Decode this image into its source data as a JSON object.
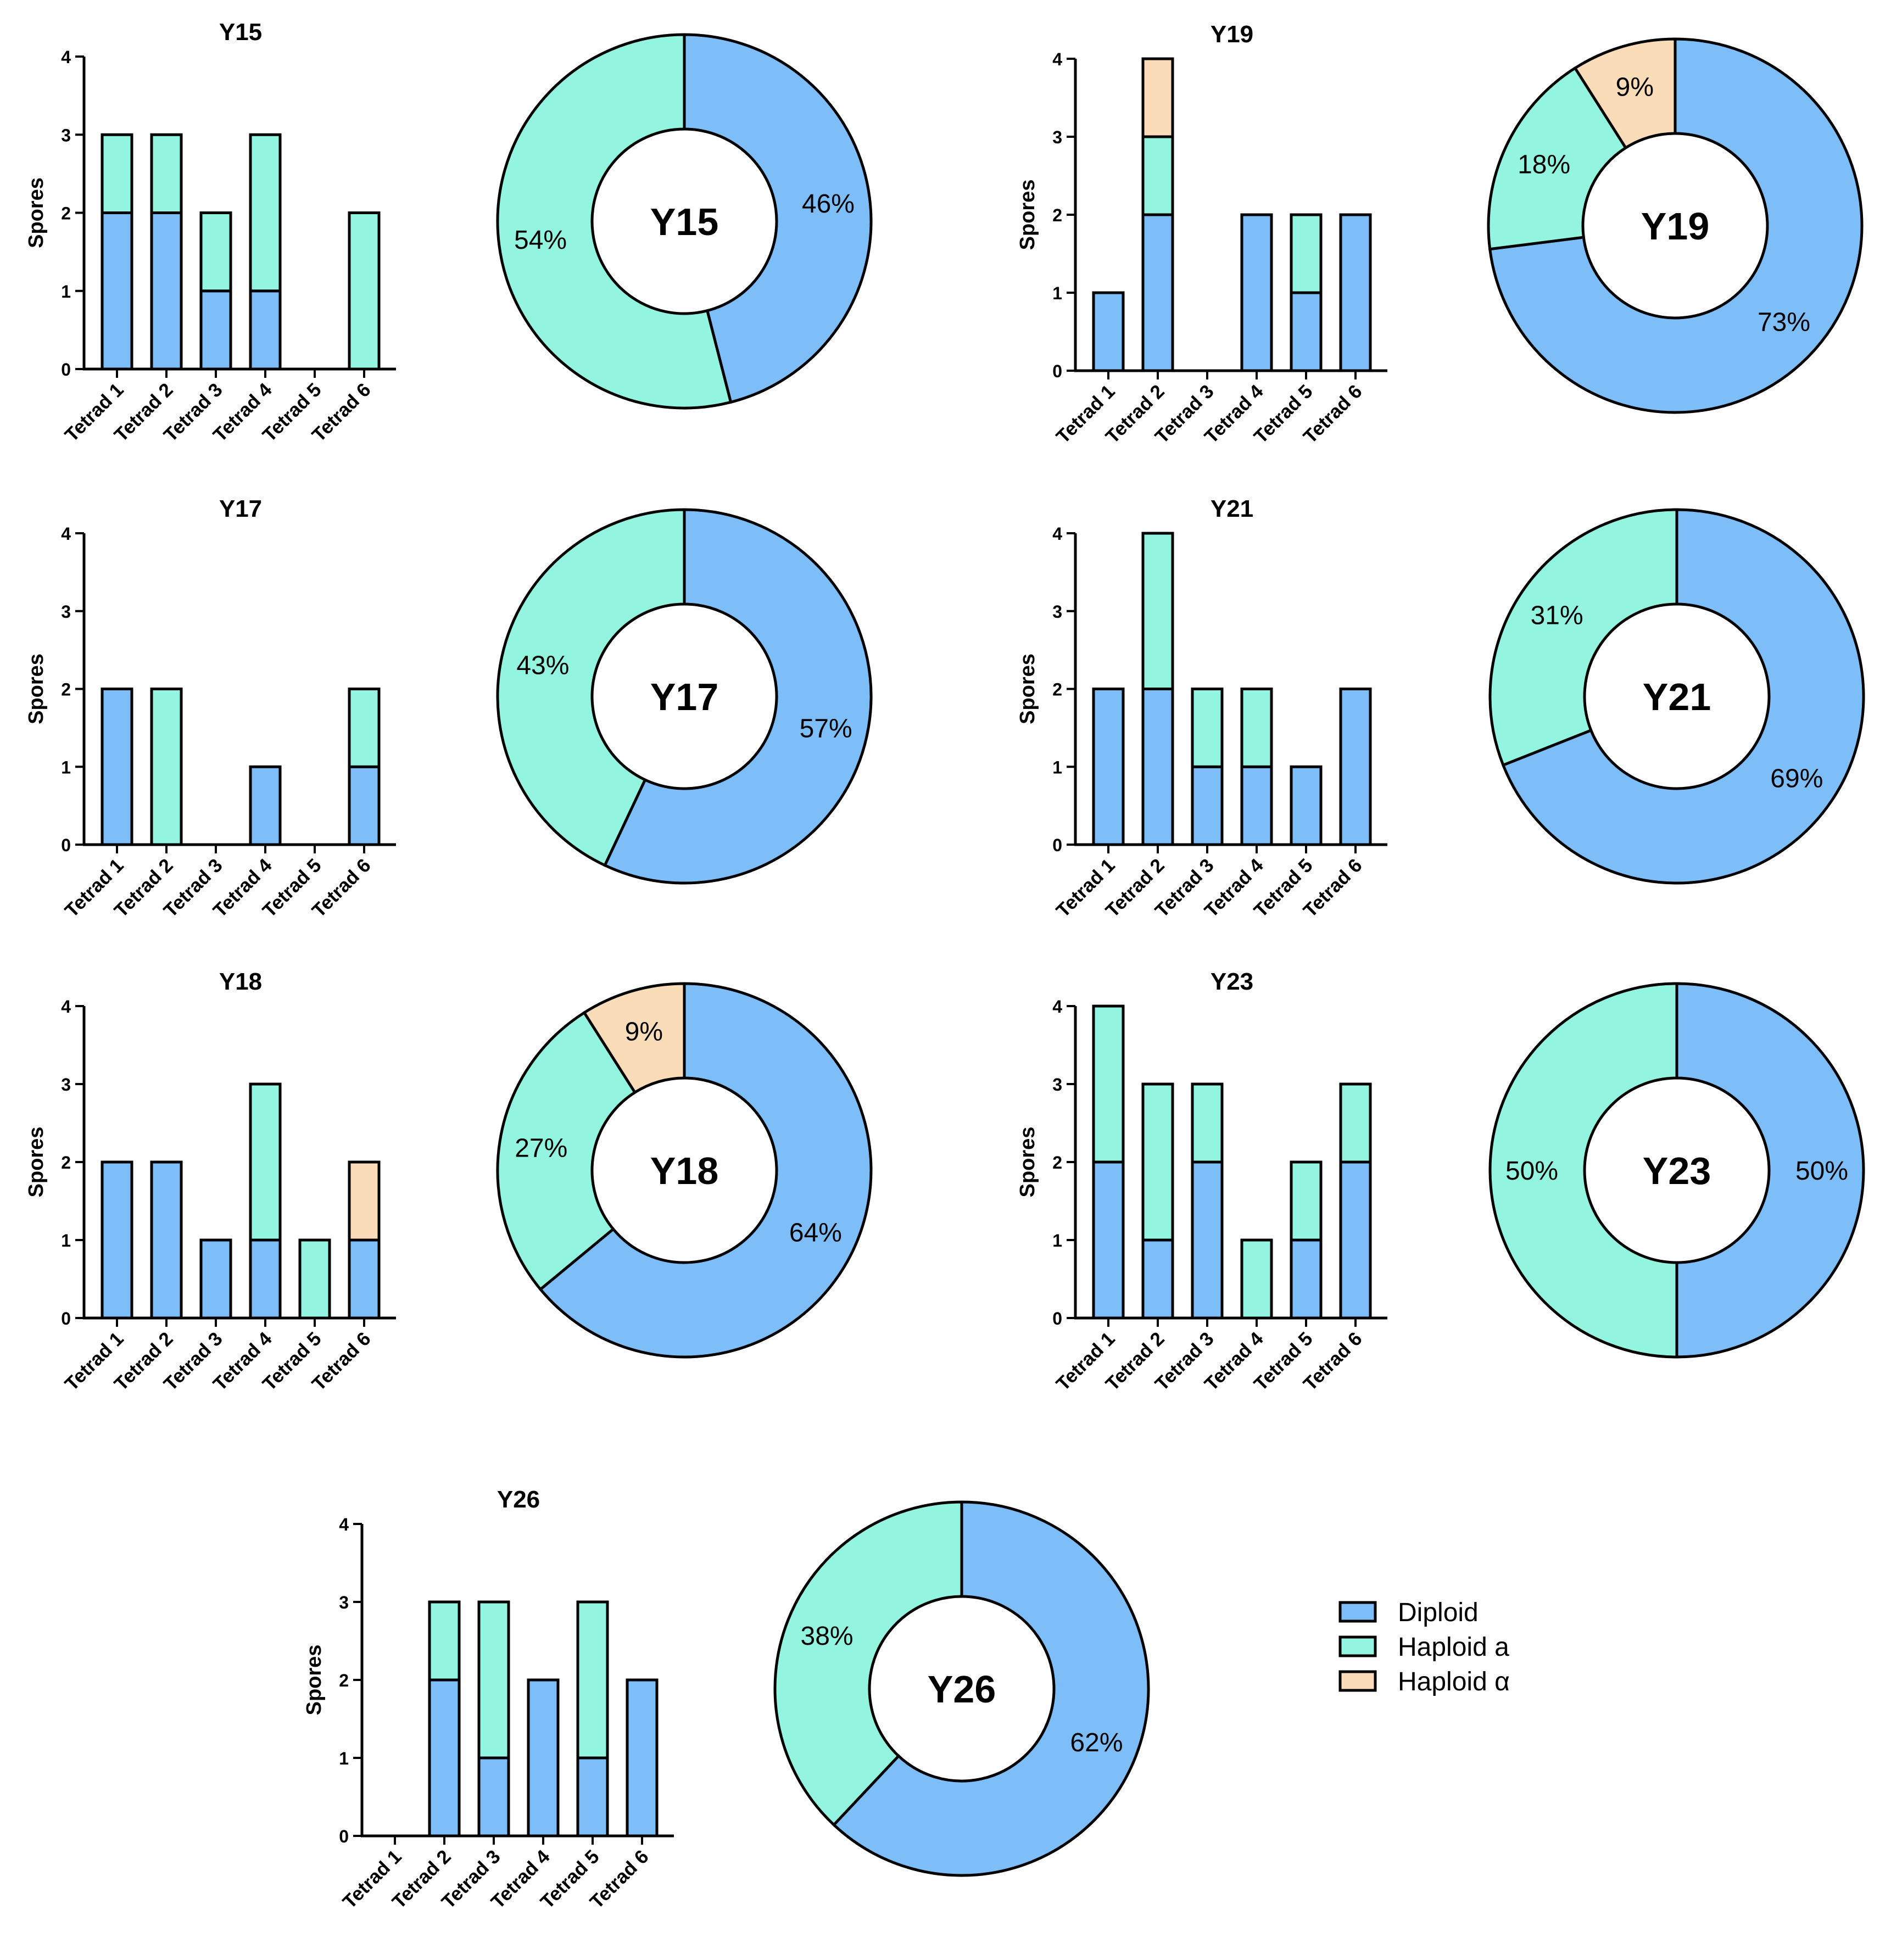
{
  "colors": {
    "diploid": "#7dbdf8",
    "haploid_a": "#93f5df",
    "haploid_alpha": "#fbdcb8",
    "outline": "#000000"
  },
  "legend": [
    {
      "key": "diploid",
      "label": "Diploid"
    },
    {
      "key": "haploid_a",
      "label": "Haploid a"
    },
    {
      "key": "haploid_alpha",
      "label": "Haploid α"
    }
  ],
  "chart_data": [
    {
      "type": "stacked-bar",
      "title": "Y15",
      "ylabel": "Spores",
      "ylim": [
        0,
        4
      ],
      "yticks": [
        "0",
        "1",
        "2",
        "3",
        "4"
      ],
      "categories": [
        "Tetrad 1",
        "Tetrad 2",
        "Tetrad 3",
        "Tetrad 4",
        "Tetrad 5",
        "Tetrad 6"
      ],
      "series": [
        {
          "name": "Diploid",
          "values": [
            2,
            2,
            1,
            1,
            0,
            0
          ]
        },
        {
          "name": "Haploid a",
          "values": [
            1,
            1,
            1,
            2,
            0,
            2
          ]
        },
        {
          "name": "Haploid α",
          "values": [
            0,
            0,
            0,
            0,
            0,
            0
          ]
        }
      ],
      "donut": {
        "center_label": "Y15",
        "slices": [
          {
            "name": "Diploid",
            "value": 46,
            "label": "46%"
          },
          {
            "name": "Haploid a",
            "value": 54,
            "label": "54%"
          }
        ]
      }
    },
    {
      "type": "stacked-bar",
      "title": "Y19",
      "ylabel": "Spores",
      "ylim": [
        0,
        4
      ],
      "yticks": [
        "0",
        "1",
        "2",
        "3",
        "4"
      ],
      "categories": [
        "Tetrad 1",
        "Tetrad 2",
        "Tetrad 3",
        "Tetrad 4",
        "Tetrad 5",
        "Tetrad 6"
      ],
      "series": [
        {
          "name": "Diploid",
          "values": [
            1,
            2,
            0,
            2,
            1,
            2
          ]
        },
        {
          "name": "Haploid a",
          "values": [
            0,
            1,
            0,
            0,
            1,
            0
          ]
        },
        {
          "name": "Haploid α",
          "values": [
            0,
            1,
            0,
            0,
            0,
            0
          ]
        }
      ],
      "donut": {
        "center_label": "Y19",
        "slices": [
          {
            "name": "Diploid",
            "value": 73,
            "label": "73%"
          },
          {
            "name": "Haploid a",
            "value": 18,
            "label": "18%"
          },
          {
            "name": "Haploid α",
            "value": 9,
            "label": "9%"
          }
        ]
      }
    },
    {
      "type": "stacked-bar",
      "title": "Y17",
      "ylabel": "Spores",
      "ylim": [
        0,
        4
      ],
      "yticks": [
        "0",
        "1",
        "2",
        "3",
        "4"
      ],
      "categories": [
        "Tetrad 1",
        "Tetrad 2",
        "Tetrad 3",
        "Tetrad 4",
        "Tetrad 5",
        "Tetrad 6"
      ],
      "series": [
        {
          "name": "Diploid",
          "values": [
            2,
            0,
            0,
            1,
            0,
            1
          ]
        },
        {
          "name": "Haploid a",
          "values": [
            0,
            2,
            0,
            0,
            0,
            1
          ]
        },
        {
          "name": "Haploid α",
          "values": [
            0,
            0,
            0,
            0,
            0,
            0
          ]
        }
      ],
      "donut": {
        "center_label": "Y17",
        "slices": [
          {
            "name": "Diploid",
            "value": 57,
            "label": "57%"
          },
          {
            "name": "Haploid a",
            "value": 43,
            "label": "43%"
          }
        ]
      }
    },
    {
      "type": "stacked-bar",
      "title": "Y21",
      "ylabel": "Spores",
      "ylim": [
        0,
        4
      ],
      "yticks": [
        "0",
        "1",
        "2",
        "3",
        "4"
      ],
      "categories": [
        "Tetrad 1",
        "Tetrad 2",
        "Tetrad 3",
        "Tetrad 4",
        "Tetrad 5",
        "Tetrad 6"
      ],
      "series": [
        {
          "name": "Diploid",
          "values": [
            2,
            2,
            1,
            1,
            1,
            2
          ]
        },
        {
          "name": "Haploid a",
          "values": [
            0,
            2,
            1,
            1,
            0,
            0
          ]
        },
        {
          "name": "Haploid α",
          "values": [
            0,
            0,
            0,
            0,
            0,
            0
          ]
        }
      ],
      "donut": {
        "center_label": "Y21",
        "slices": [
          {
            "name": "Diploid",
            "value": 69,
            "label": "69%"
          },
          {
            "name": "Haploid a",
            "value": 31,
            "label": "31%"
          }
        ]
      }
    },
    {
      "type": "stacked-bar",
      "title": "Y18",
      "ylabel": "Spores",
      "ylim": [
        0,
        4
      ],
      "yticks": [
        "0",
        "1",
        "2",
        "3",
        "4"
      ],
      "categories": [
        "Tetrad 1",
        "Tetrad 2",
        "Tetrad 3",
        "Tetrad 4",
        "Tetrad 5",
        "Tetrad 6"
      ],
      "series": [
        {
          "name": "Diploid",
          "values": [
            2,
            2,
            1,
            1,
            0,
            1
          ]
        },
        {
          "name": "Haploid a",
          "values": [
            0,
            0,
            0,
            2,
            1,
            0
          ]
        },
        {
          "name": "Haploid α",
          "values": [
            0,
            0,
            0,
            0,
            0,
            1
          ]
        }
      ],
      "donut": {
        "center_label": "Y18",
        "slices": [
          {
            "name": "Diploid",
            "value": 64,
            "label": "64%"
          },
          {
            "name": "Haploid a",
            "value": 27,
            "label": "27%"
          },
          {
            "name": "Haploid α",
            "value": 9,
            "label": "9%"
          }
        ]
      }
    },
    {
      "type": "stacked-bar",
      "title": "Y23",
      "ylabel": "Spores",
      "ylim": [
        0,
        4
      ],
      "yticks": [
        "0",
        "1",
        "2",
        "3",
        "4"
      ],
      "categories": [
        "Tetrad 1",
        "Tetrad 2",
        "Tetrad 3",
        "Tetrad 4",
        "Tetrad 5",
        "Tetrad 6"
      ],
      "series": [
        {
          "name": "Diploid",
          "values": [
            2,
            1,
            2,
            0,
            1,
            2
          ]
        },
        {
          "name": "Haploid a",
          "values": [
            2,
            2,
            1,
            1,
            1,
            1
          ]
        },
        {
          "name": "Haploid α",
          "values": [
            0,
            0,
            0,
            0,
            0,
            0
          ]
        }
      ],
      "donut": {
        "center_label": "Y23",
        "slices": [
          {
            "name": "Diploid",
            "value": 50,
            "label": "50%"
          },
          {
            "name": "Haploid a",
            "value": 50,
            "label": "50%"
          }
        ]
      }
    },
    {
      "type": "stacked-bar",
      "title": "Y26",
      "ylabel": "Spores",
      "ylim": [
        0,
        4
      ],
      "yticks": [
        "0",
        "1",
        "2",
        "3",
        "4"
      ],
      "categories": [
        "Tetrad 1",
        "Tetrad 2",
        "Tetrad 3",
        "Tetrad 4",
        "Tetrad 5",
        "Tetrad 6"
      ],
      "series": [
        {
          "name": "Diploid",
          "values": [
            0,
            2,
            1,
            2,
            1,
            2
          ]
        },
        {
          "name": "Haploid a",
          "values": [
            0,
            1,
            2,
            0,
            2,
            0
          ]
        },
        {
          "name": "Haploid α",
          "values": [
            0,
            0,
            0,
            0,
            0,
            0
          ]
        }
      ],
      "donut": {
        "center_label": "Y26",
        "slices": [
          {
            "name": "Diploid",
            "value": 62,
            "label": "62%"
          },
          {
            "name": "Haploid a",
            "value": 38,
            "label": "38%"
          }
        ]
      }
    }
  ]
}
